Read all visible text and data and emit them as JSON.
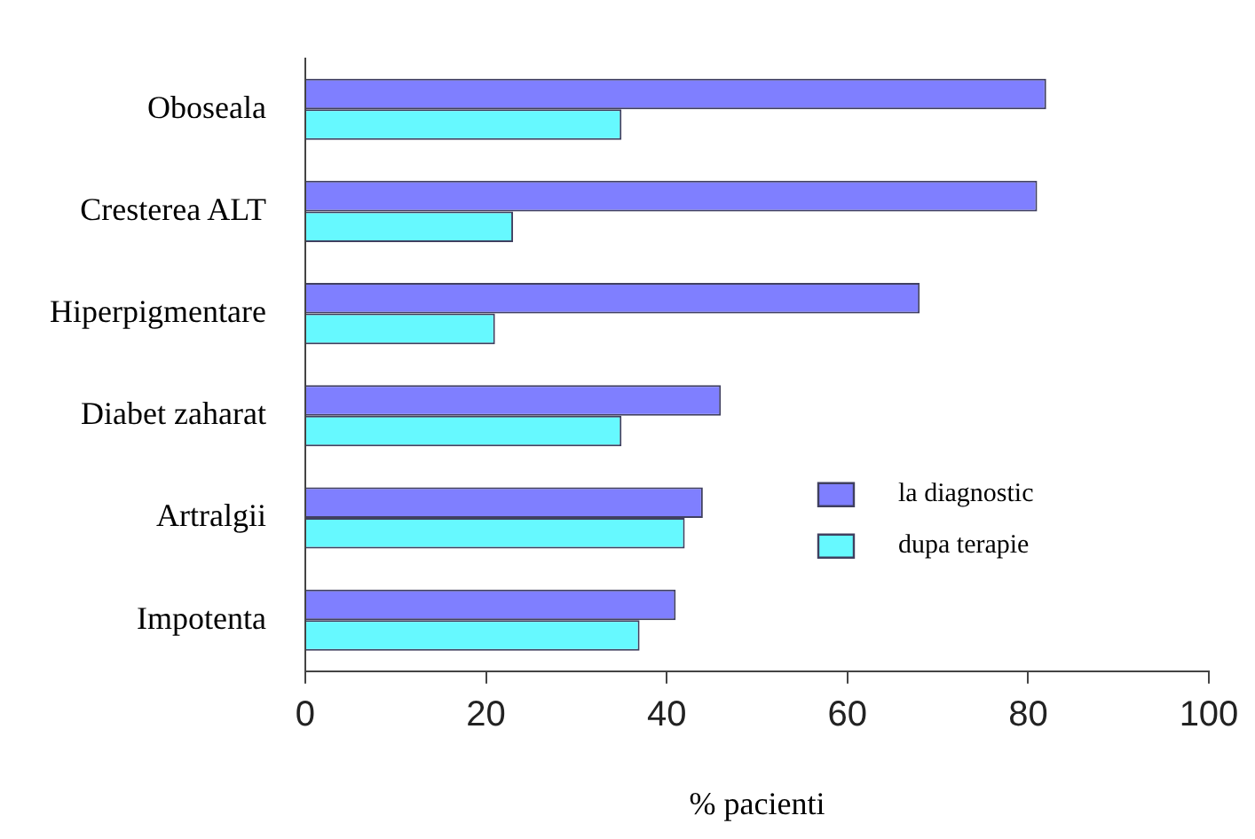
{
  "chart_data": {
    "type": "bar",
    "orientation": "horizontal",
    "xlabel": "% pacienti",
    "categories": [
      "Oboseala",
      "Cresterea ALT",
      "Hiperpigmentare",
      "Diabet zaharat",
      "Artralgii",
      "Impotenta"
    ],
    "series": [
      {
        "name": "la diagnostic",
        "color": "#7f7fff",
        "values": [
          82,
          81,
          68,
          46,
          44,
          41
        ]
      },
      {
        "name": "dupa terapie",
        "color": "#66f9ff",
        "values": [
          35,
          23,
          21,
          35,
          42,
          37
        ]
      }
    ],
    "xlim": [
      0,
      100
    ],
    "xticks": [
      0,
      20,
      40,
      60,
      80,
      100
    ],
    "grid": false,
    "legend": "bottom right"
  }
}
